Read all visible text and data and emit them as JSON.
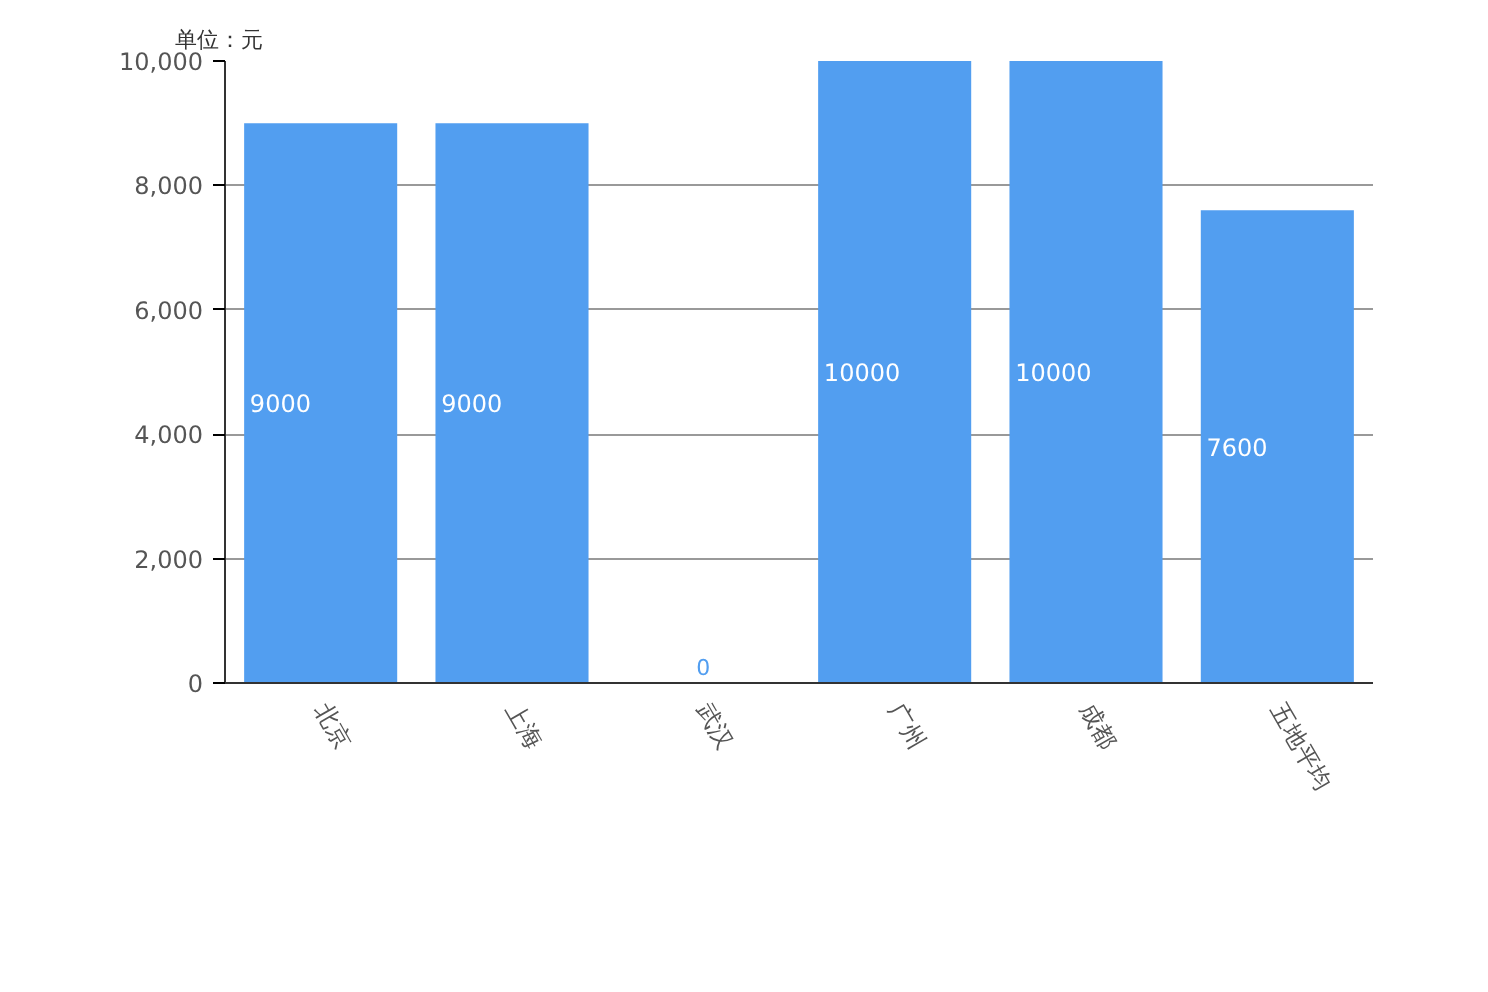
{
  "chart_data": {
    "type": "bar",
    "ylabel": "单位：元",
    "categories": [
      "北京",
      "上海",
      "武汉",
      "广州",
      "成都",
      "五地平均"
    ],
    "series": [
      {
        "color": "#529ef0",
        "values": [
          9000,
          9000,
          0,
          10000,
          10000,
          7600
        ]
      }
    ],
    "ylim": [
      0,
      10000
    ],
    "yticks": [
      0,
      {
        "value": 2000,
        "label": "2,000"
      },
      {
        "value": 4000,
        "label": "4,000"
      },
      {
        "value": 6000,
        "label": "6,000"
      },
      {
        "value": 8000,
        "label": "8,000"
      },
      {
        "value": 10000,
        "label": "10,000"
      }
    ],
    "grid": "y",
    "data_labels": true
  }
}
